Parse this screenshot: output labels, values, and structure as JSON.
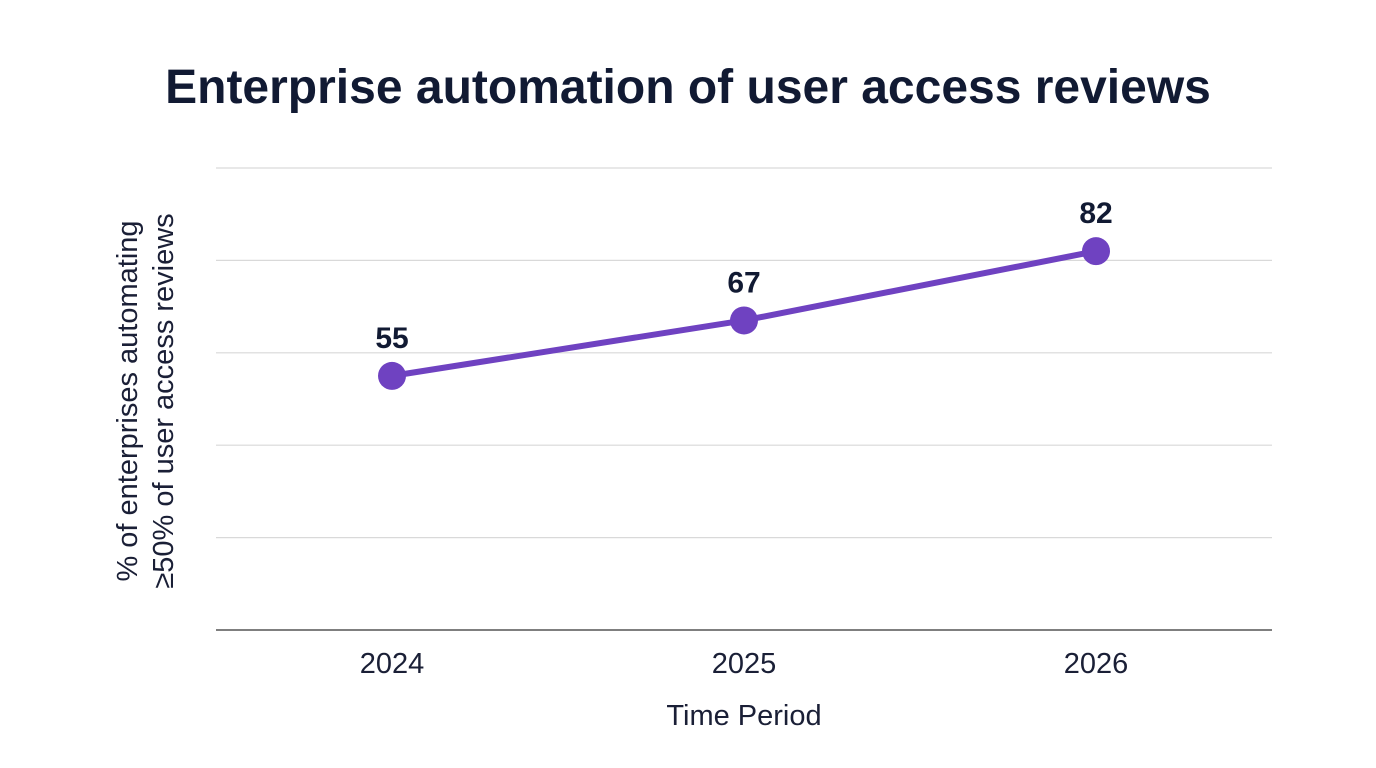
{
  "chart_data": {
    "type": "line",
    "title": "Enterprise automation of user access reviews",
    "xlabel": "Time Period",
    "ylabel": [
      "% of enterprises automating",
      "≥50% of user access reviews"
    ],
    "categories": [
      "2024",
      "2025",
      "2026"
    ],
    "series": [
      {
        "values": [
          55,
          67,
          82
        ],
        "color": "#6f42c1"
      }
    ],
    "ylim": [
      0,
      100
    ],
    "grid": true,
    "data_labels": true,
    "colors": {
      "line": "#6f42c1",
      "text": "#111a33",
      "grid": "#d9d9d9",
      "axis": "#555555"
    }
  }
}
